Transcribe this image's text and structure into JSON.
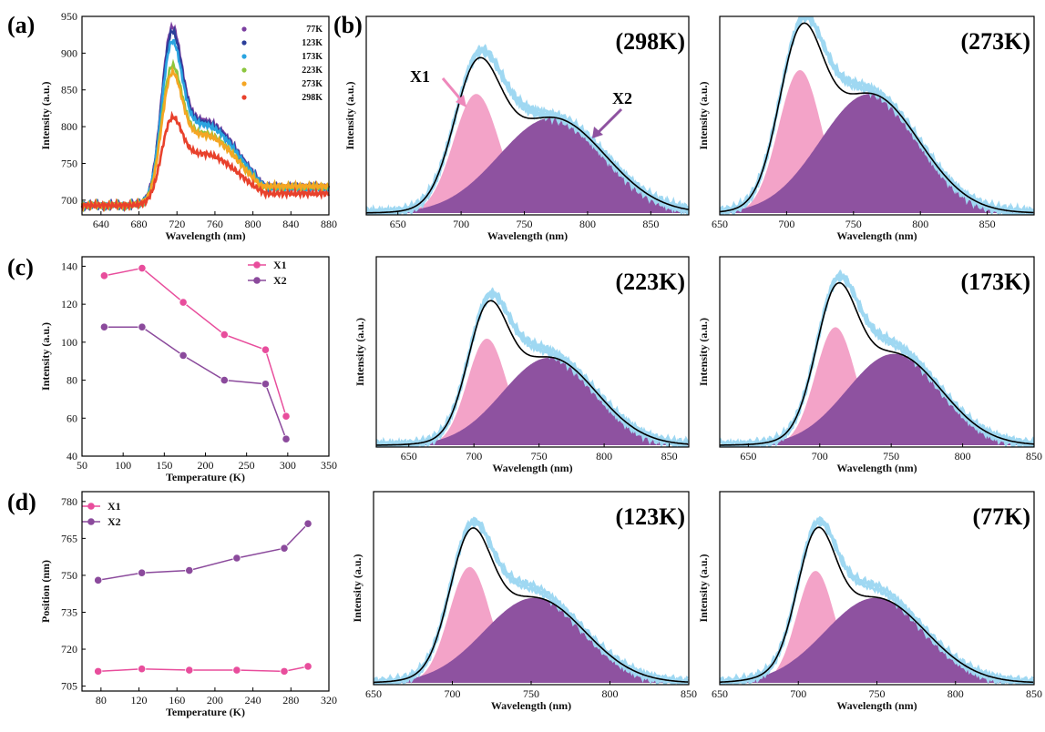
{
  "figure": {
    "panel_a": "(a)",
    "panel_b": "(b)",
    "panel_c": "(c)",
    "panel_d": "(d)"
  },
  "colors": {
    "t77": "#7b3fa0",
    "t123": "#2c3f9a",
    "t173": "#2aa4e0",
    "t223": "#8cc63f",
    "t273": "#f5a623",
    "t298": "#e8412c",
    "x1": "#e84d9c",
    "x2": "#8b4a9c",
    "x1_fill": "#f3a3c8",
    "x2_fill": "#8e52a0",
    "exp": "#9fd8f2",
    "fit": "#000000"
  },
  "chart_data": [
    {
      "id": "a",
      "type": "line",
      "xlabel": "Wavelength (nm)",
      "ylabel": "Intensity (a.u.)",
      "xlim": [
        620,
        880
      ],
      "ylim": [
        680,
        950
      ],
      "xticks": [
        640,
        680,
        720,
        760,
        800,
        840,
        880
      ],
      "yticks": [
        700,
        750,
        800,
        850,
        900,
        950
      ],
      "legend_position": "top-right",
      "baseline": 693,
      "series": [
        {
          "name": "77K",
          "color": "t77",
          "peak": 908,
          "tail": 718,
          "shoulder": 0.4
        },
        {
          "name": "123K",
          "color": "t123",
          "peak": 903,
          "tail": 717,
          "shoulder": 0.4
        },
        {
          "name": "173K",
          "color": "t173",
          "peak": 888,
          "tail": 716,
          "shoulder": 0.42
        },
        {
          "name": "223K",
          "color": "t223",
          "peak": 855,
          "tail": 718,
          "shoulder": 0.45
        },
        {
          "name": "273K",
          "color": "t273",
          "peak": 845,
          "tail": 719,
          "shoulder": 0.47
        },
        {
          "name": "298K",
          "color": "t298",
          "peak": 788,
          "tail": 709,
          "shoulder": 0.55
        }
      ]
    },
    {
      "id": "b298",
      "type": "area",
      "label": "(298K)",
      "xlabel": "Wavelength (nm)",
      "ylabel": "Intensity (a.u.)",
      "xlim": [
        625,
        880
      ],
      "xticks": [
        650,
        700,
        750,
        800,
        850
      ],
      "x1": {
        "center": 712,
        "height": 0.6,
        "width": 18
      },
      "x2": {
        "center": 772,
        "height": 0.48,
        "width": 42
      },
      "peak_labels": [
        "X1",
        "X2"
      ]
    },
    {
      "id": "b273",
      "type": "area",
      "label": "(273K)",
      "xlabel": "Wavelength  (nm)",
      "ylabel": "Intensity (a.u.)",
      "xlim": [
        650,
        885
      ],
      "xticks": [
        650,
        700,
        750,
        800,
        850
      ],
      "x1": {
        "center": 710,
        "height": 0.72,
        "width": 16
      },
      "x2": {
        "center": 762,
        "height": 0.6,
        "width": 37
      }
    },
    {
      "id": "b223",
      "type": "area",
      "label": "(223K)",
      "xlabel": "Wavelength (nm)",
      "ylabel": "Intensity (a.u.)",
      "xlim": [
        625,
        865
      ],
      "xticks": [
        650,
        700,
        750,
        800,
        850
      ],
      "x1": {
        "center": 710,
        "height": 0.56,
        "width": 15
      },
      "x2": {
        "center": 758,
        "height": 0.46,
        "width": 36
      }
    },
    {
      "id": "b173",
      "type": "area",
      "label": "(173K)",
      "xlabel": "Wavelength (nm)",
      "ylabel": "Intensity (a.u.)",
      "xlim": [
        630,
        850
      ],
      "xticks": [
        650,
        700,
        750,
        800,
        850
      ],
      "x1": {
        "center": 711,
        "height": 0.62,
        "width": 14
      },
      "x2": {
        "center": 752,
        "height": 0.48,
        "width": 33
      }
    },
    {
      "id": "b123",
      "type": "area",
      "label": "(123K)",
      "xlabel": "Wavelength (nm)",
      "ylabel": "Intensity (a.u.)",
      "xlim": [
        650,
        850
      ],
      "xticks": [
        650,
        700,
        750,
        800,
        850
      ],
      "x1": {
        "center": 711,
        "height": 0.6,
        "width": 13
      },
      "x2": {
        "center": 752,
        "height": 0.44,
        "width": 32
      }
    },
    {
      "id": "b77",
      "type": "area",
      "label": "(77K)",
      "xlabel": "Wavelength (nm)",
      "ylabel": "Intensity (a.u.)",
      "xlim": [
        650,
        850
      ],
      "xticks": [
        650,
        700,
        750,
        800,
        850
      ],
      "x1": {
        "center": 711,
        "height": 0.58,
        "width": 12
      },
      "x2": {
        "center": 749,
        "height": 0.44,
        "width": 32
      }
    },
    {
      "id": "c",
      "type": "line",
      "xlabel": "Temperature (K)",
      "ylabel": "Intensity (a.u.)",
      "xlim": [
        50,
        350
      ],
      "ylim": [
        40,
        145
      ],
      "xticks": [
        50,
        100,
        150,
        200,
        250,
        300,
        350
      ],
      "yticks": [
        40,
        60,
        80,
        100,
        120,
        140
      ],
      "legend_position": "top-right",
      "x": [
        77,
        123,
        173,
        223,
        273,
        298
      ],
      "series": [
        {
          "name": "X1",
          "color": "x1",
          "values": [
            135,
            139,
            121,
            104,
            96,
            61
          ]
        },
        {
          "name": "X2",
          "color": "x2",
          "values": [
            108,
            108,
            93,
            80,
            78,
            49
          ]
        }
      ]
    },
    {
      "id": "d",
      "type": "line",
      "xlabel": "Temperature (K)",
      "ylabel": "Position (nm)",
      "xlim": [
        60,
        320
      ],
      "ylim": [
        703,
        784
      ],
      "xticks": [
        80,
        120,
        160,
        200,
        240,
        280,
        320
      ],
      "yticks": [
        705,
        720,
        735,
        750,
        765,
        780
      ],
      "legend_position": "top-left",
      "x": [
        77,
        123,
        173,
        223,
        273,
        298
      ],
      "series": [
        {
          "name": "X1",
          "color": "x1",
          "values": [
            711,
            712,
            711.5,
            711.5,
            711,
            713
          ]
        },
        {
          "name": "X2",
          "color": "x2",
          "values": [
            748,
            751,
            752,
            757,
            761,
            771
          ]
        }
      ]
    }
  ]
}
